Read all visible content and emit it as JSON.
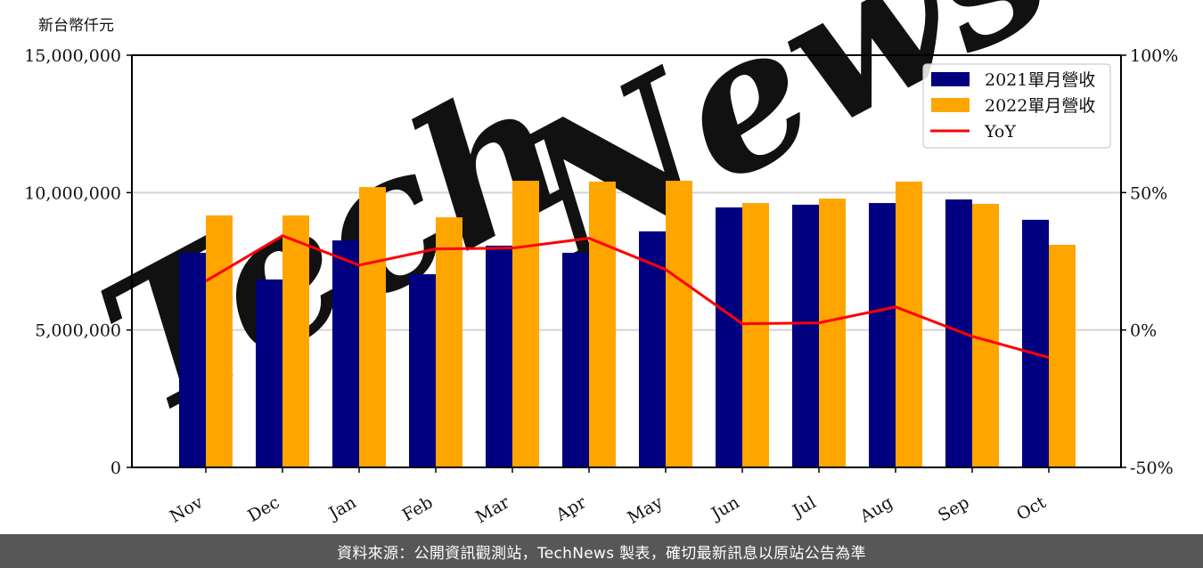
{
  "chart_data": {
    "type": "bar",
    "title": "",
    "ylabel": "新台幣仟元",
    "xlabel": "",
    "categories": [
      "Nov",
      "Dec",
      "Jan",
      "Feb",
      "Mar",
      "Apr",
      "May",
      "Jun",
      "Jul",
      "Aug",
      "Sep",
      "Oct"
    ],
    "series": [
      {
        "name": "2021單月營收",
        "type": "bar",
        "color": "#000080",
        "axis": "left",
        "values": [
          7810000,
          6840000,
          8260000,
          7030000,
          8070000,
          7810000,
          8590000,
          9460000,
          9560000,
          9620000,
          9750000,
          9010000
        ]
      },
      {
        "name": "2022單月營收",
        "type": "bar",
        "color": "#FFA500",
        "axis": "left",
        "values": [
          9170000,
          9170000,
          10200000,
          9100000,
          10430000,
          10400000,
          10430000,
          9620000,
          9780000,
          10400000,
          9590000,
          8100000
        ]
      },
      {
        "name": "YoY",
        "type": "line",
        "color": "#FF0000",
        "axis": "right",
        "unit": "%",
        "values": [
          17.8,
          34.3,
          23.6,
          29.5,
          29.8,
          33.4,
          22.0,
          2.3,
          2.6,
          8.4,
          -2.3,
          -10.0
        ]
      }
    ],
    "ylim": [
      0,
      15000000
    ],
    "y2lim": [
      -50,
      100
    ],
    "yticks": [
      "0",
      "5,000,000",
      "10,000,000",
      "15,000,000"
    ],
    "y2ticks": [
      "-50%",
      "0%",
      "50%",
      "100%"
    ],
    "grid": true,
    "legend_position": "upper right",
    "watermark": "TechNews"
  },
  "axis": {
    "unit_label": "新台幣仟元"
  },
  "legend": {
    "items": [
      {
        "label": "2021單月營收",
        "color": "#000080",
        "kind": "bar"
      },
      {
        "label": "2022單月營收",
        "color": "#FFA500",
        "kind": "bar"
      },
      {
        "label": "YoY",
        "color": "#FF0000",
        "kind": "line"
      }
    ]
  },
  "footer": {
    "source_text": "資料來源：公開資訊觀測站，TechNews 製表，確切最新訊息以原站公告為準"
  }
}
